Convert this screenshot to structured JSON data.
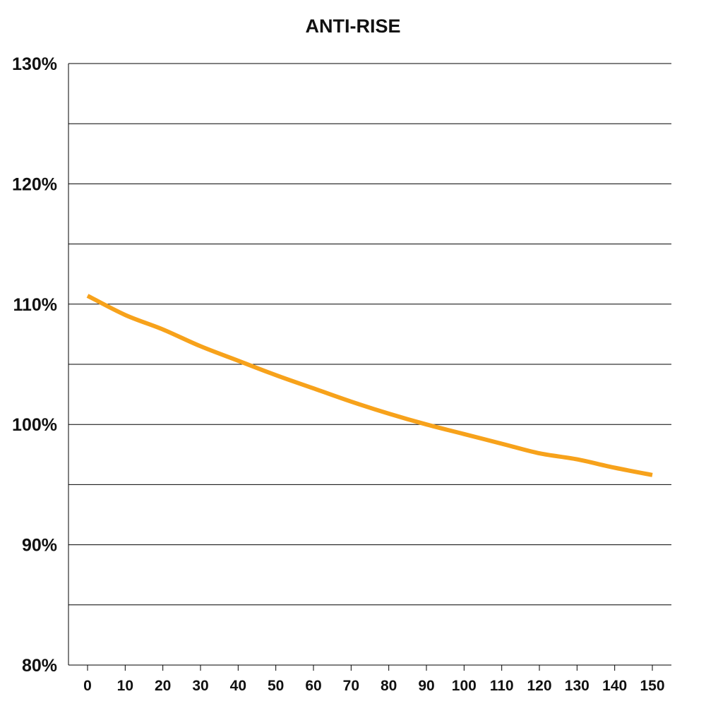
{
  "chart_data": {
    "type": "line",
    "title": "ANTI-RISE",
    "xlabel": "",
    "ylabel": "",
    "xlim": [
      0,
      150
    ],
    "ylim": [
      80,
      130
    ],
    "x_ticks": [
      0,
      10,
      20,
      30,
      40,
      50,
      60,
      70,
      80,
      90,
      100,
      110,
      120,
      130,
      140,
      150
    ],
    "x_tick_labels": [
      "0",
      "10",
      "20",
      "30",
      "40",
      "50",
      "60",
      "70",
      "80",
      "90",
      "100",
      "110",
      "120",
      "130",
      "140",
      "150"
    ],
    "y_ticks": [
      80,
      90,
      100,
      110,
      120,
      130
    ],
    "y_tick_labels": [
      "80%",
      "90%",
      "100%",
      "110%",
      "120%",
      "130%"
    ],
    "grid": {
      "horizontal": true,
      "step": 5
    },
    "series": [
      {
        "color": "#F7A21B",
        "x": [
          0,
          10,
          20,
          30,
          40,
          50,
          60,
          70,
          80,
          90,
          100,
          110,
          120,
          130,
          140,
          150
        ],
        "y": [
          110.7,
          109.1,
          107.9,
          106.5,
          105.3,
          104.1,
          103.0,
          101.9,
          100.9,
          100.0,
          99.2,
          98.4,
          97.6,
          97.1,
          96.4,
          95.8
        ]
      }
    ]
  }
}
